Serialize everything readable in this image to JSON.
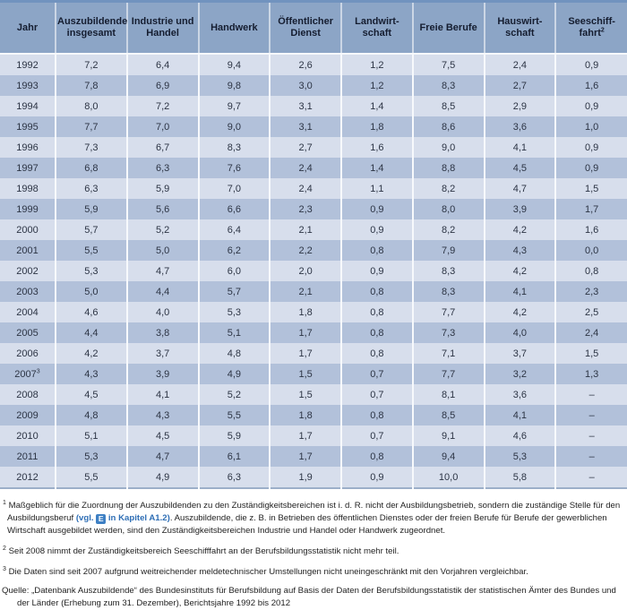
{
  "table": {
    "columns": [
      {
        "key": "jahr",
        "lines": [
          "Jahr"
        ]
      },
      {
        "key": "auszubildende-insgesamt",
        "lines": [
          "Auszubildende",
          "insgesamt"
        ]
      },
      {
        "key": "industrie-und-handel",
        "lines": [
          "Industrie und",
          "Handel"
        ]
      },
      {
        "key": "handwerk",
        "lines": [
          "Handwerk"
        ]
      },
      {
        "key": "oeffentlicher-dienst",
        "lines": [
          "Öffentlicher",
          "Dienst"
        ]
      },
      {
        "key": "landwirtschaft",
        "lines": [
          "Landwirt-",
          "schaft"
        ]
      },
      {
        "key": "freie-berufe",
        "lines": [
          "Freie Berufe"
        ]
      },
      {
        "key": "hauswirtschaft",
        "lines": [
          "Hauswirt-",
          "schaft"
        ]
      },
      {
        "key": "seeschifffahrt",
        "lines": [
          "Seeschiff-",
          "fahrt"
        ],
        "sup": "2"
      }
    ],
    "rows": [
      {
        "year": "1992",
        "values": [
          "7,2",
          "6,4",
          "9,4",
          "2,6",
          "1,2",
          "7,5",
          "2,4",
          "0,9"
        ]
      },
      {
        "year": "1993",
        "values": [
          "7,8",
          "6,9",
          "9,8",
          "3,0",
          "1,2",
          "8,3",
          "2,7",
          "1,6"
        ]
      },
      {
        "year": "1994",
        "values": [
          "8,0",
          "7,2",
          "9,7",
          "3,1",
          "1,4",
          "8,5",
          "2,9",
          "0,9"
        ]
      },
      {
        "year": "1995",
        "values": [
          "7,7",
          "7,0",
          "9,0",
          "3,1",
          "1,8",
          "8,6",
          "3,6",
          "1,0"
        ]
      },
      {
        "year": "1996",
        "values": [
          "7,3",
          "6,7",
          "8,3",
          "2,7",
          "1,6",
          "9,0",
          "4,1",
          "0,9"
        ]
      },
      {
        "year": "1997",
        "values": [
          "6,8",
          "6,3",
          "7,6",
          "2,4",
          "1,4",
          "8,8",
          "4,5",
          "0,9"
        ]
      },
      {
        "year": "1998",
        "values": [
          "6,3",
          "5,9",
          "7,0",
          "2,4",
          "1,1",
          "8,2",
          "4,7",
          "1,5"
        ]
      },
      {
        "year": "1999",
        "values": [
          "5,9",
          "5,6",
          "6,6",
          "2,3",
          "0,9",
          "8,0",
          "3,9",
          "1,7"
        ]
      },
      {
        "year": "2000",
        "values": [
          "5,7",
          "5,2",
          "6,4",
          "2,1",
          "0,9",
          "8,2",
          "4,2",
          "1,6"
        ]
      },
      {
        "year": "2001",
        "values": [
          "5,5",
          "5,0",
          "6,2",
          "2,2",
          "0,8",
          "7,9",
          "4,3",
          "0,0"
        ]
      },
      {
        "year": "2002",
        "values": [
          "5,3",
          "4,7",
          "6,0",
          "2,0",
          "0,9",
          "8,3",
          "4,2",
          "0,8"
        ]
      },
      {
        "year": "2003",
        "values": [
          "5,0",
          "4,4",
          "5,7",
          "2,1",
          "0,8",
          "8,3",
          "4,1",
          "2,3"
        ]
      },
      {
        "year": "2004",
        "values": [
          "4,6",
          "4,0",
          "5,3",
          "1,8",
          "0,8",
          "7,7",
          "4,2",
          "2,5"
        ]
      },
      {
        "year": "2005",
        "values": [
          "4,4",
          "3,8",
          "5,1",
          "1,7",
          "0,8",
          "7,3",
          "4,0",
          "2,4"
        ]
      },
      {
        "year": "2006",
        "values": [
          "4,2",
          "3,7",
          "4,8",
          "1,7",
          "0,8",
          "7,1",
          "3,7",
          "1,5"
        ]
      },
      {
        "year": "2007",
        "year_sup": "3",
        "values": [
          "4,3",
          "3,9",
          "4,9",
          "1,5",
          "0,7",
          "7,7",
          "3,2",
          "1,3"
        ]
      },
      {
        "year": "2008",
        "values": [
          "4,5",
          "4,1",
          "5,2",
          "1,5",
          "0,7",
          "8,1",
          "3,6",
          "–"
        ]
      },
      {
        "year": "2009",
        "values": [
          "4,8",
          "4,3",
          "5,5",
          "1,8",
          "0,8",
          "8,5",
          "4,1",
          "–"
        ]
      },
      {
        "year": "2010",
        "values": [
          "5,1",
          "4,5",
          "5,9",
          "1,7",
          "0,7",
          "9,1",
          "4,6",
          "–"
        ]
      },
      {
        "year": "2011",
        "values": [
          "5,3",
          "4,7",
          "6,1",
          "1,7",
          "0,8",
          "9,4",
          "5,3",
          "–"
        ]
      },
      {
        "year": "2012",
        "values": [
          "5,5",
          "4,9",
          "6,3",
          "1,9",
          "0,9",
          "10,0",
          "5,8",
          "–"
        ]
      }
    ]
  },
  "footnotes": {
    "fn1": {
      "marker": "1",
      "text1": "Maßgeblich für die Zuordnung der Auszubildenden zu den Zuständigkeitsbereichen ist i. d. R. nicht der Ausbildungsbetrieb, sondern die zuständige Stelle für den Ausbildungsberuf ",
      "link_pre": "(vgl.",
      "icon": "E",
      "link_post": "in Kapitel A1.2)",
      "text2": ". Auszubildende, die z. B. in Betrieben des öffentlichen Dienstes oder der freien Berufe für Berufe der gewerblichen Wirtschaft ausgebildet werden, sind den Zuständigkeitsbereichen Industrie und Handel oder Handwerk zugeordnet."
    },
    "fn2": {
      "marker": "2",
      "text": "Seit 2008 nimmt der Zuständigkeitsbereich Seeschifffahrt an der Berufsbildungsstatistik nicht mehr teil."
    },
    "fn3": {
      "marker": "3",
      "text": "Die Daten sind seit 2007 aufgrund weitreichender meldetechnischer Umstellungen nicht uneingeschränkt mit den Vorjahren vergleichbar."
    },
    "source": {
      "label": "Quelle:",
      "text": "„Datenbank Auszubildende“ des Bundesinstituts für Berufsbildung auf Basis der Daten der Berufsbildungsstatistik der statistischen Ämter des Bundes und der Länder (Erhebung zum 31. Dezember), Berichtsjahre 1992 bis 2012"
    }
  },
  "colors": {
    "header_bg": "#8ca5c6",
    "row_light": "#d7deec",
    "row_dark": "#b2c1da",
    "top_border": "#7193bf",
    "link_blue": "#2e6eb5",
    "icon_bg": "#3e80c4"
  }
}
